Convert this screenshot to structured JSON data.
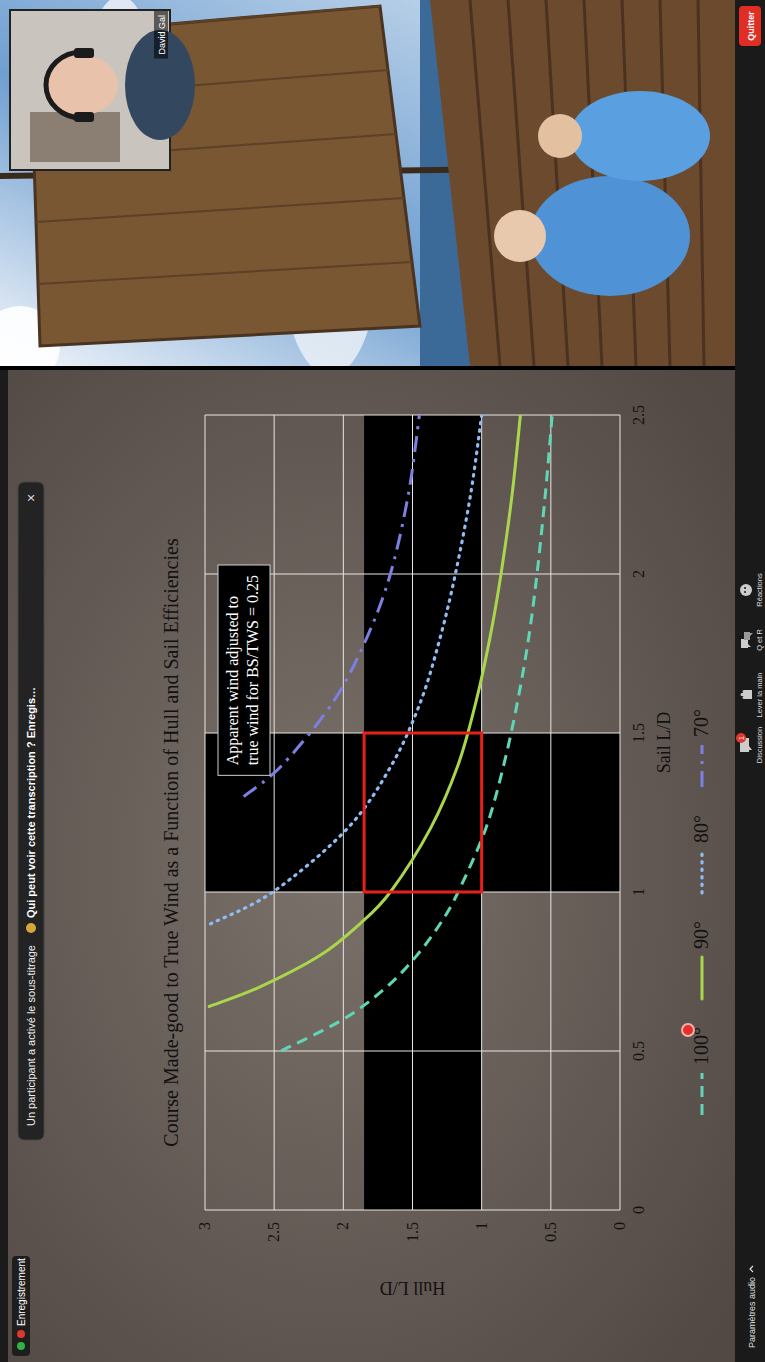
{
  "chart_data": {
    "type": "line",
    "title": "Course Made-good to True Wind as a Function of Hull and Sail Efficiencies",
    "x_label": "Sail L/D",
    "y_label": "Hull L/D",
    "xlim": [
      0,
      2.5
    ],
    "ylim": [
      0,
      3
    ],
    "xticks": [
      0,
      0.5,
      1,
      1.5,
      2,
      2.5
    ],
    "yticks": [
      0,
      0.5,
      1,
      1.5,
      2,
      2.5,
      3
    ],
    "grid": true,
    "legend": "bottom",
    "annotation": {
      "lines": [
        "Apparent wind adjusted to",
        "true wind for BS/TWS = 0.25"
      ]
    },
    "highlight": {
      "x_band": [
        1,
        1.5
      ],
      "y_band": [
        1,
        1.85
      ],
      "box_color": "#e8201c"
    },
    "series": [
      {
        "name": "100°",
        "color": "#5fd6b6",
        "line_style": "dashed",
        "x": [
          0.5,
          0.6,
          0.7,
          0.8,
          0.9,
          1.0,
          1.2,
          1.4,
          1.6,
          1.8,
          2.0,
          2.25,
          2.5
        ],
        "values": [
          2.45,
          2.0,
          1.69,
          1.47,
          1.3,
          1.17,
          0.97,
          0.84,
          0.74,
          0.66,
          0.6,
          0.54,
          0.49
        ]
      },
      {
        "name": "90°",
        "color": "#a9d64a",
        "line_style": "solid",
        "x": [
          0.64,
          0.7,
          0.8,
          0.9,
          1.0,
          1.2,
          1.4,
          1.6,
          1.8,
          2.0,
          2.25,
          2.5
        ],
        "values": [
          2.97,
          2.61,
          2.17,
          1.88,
          1.66,
          1.37,
          1.17,
          1.04,
          0.94,
          0.86,
          0.78,
          0.72
        ]
      },
      {
        "name": "80°",
        "color": "#8fbcf2",
        "line_style": "dotted",
        "x": [
          0.9,
          1.0,
          1.2,
          1.4,
          1.6,
          1.8,
          2.0,
          2.25,
          2.5
        ],
        "values": [
          2.96,
          2.51,
          1.97,
          1.65,
          1.44,
          1.3,
          1.19,
          1.08,
          1.0
        ]
      },
      {
        "name": "70°",
        "color": "#7b80e2",
        "line_style": "dash-dot",
        "x": [
          1.3,
          1.4,
          1.6,
          1.8,
          2.0,
          2.25,
          2.5
        ],
        "values": [
          2.72,
          2.44,
          2.07,
          1.83,
          1.66,
          1.53,
          1.45
        ]
      }
    ]
  },
  "screen": {
    "recording": "Enregistrement",
    "notice": "Un participant a activé le sous-titrage",
    "notice_question": "Qui peut voir cette transcription ? Enregis…",
    "notice_close": "×",
    "speaker": "David Gal",
    "audio_settings": "Paramètres audio",
    "toolbar": [
      "Discussion",
      "Lever la main",
      "Q et R",
      "Réactions"
    ],
    "chat_badge": "1",
    "quit": "Quitter"
  }
}
